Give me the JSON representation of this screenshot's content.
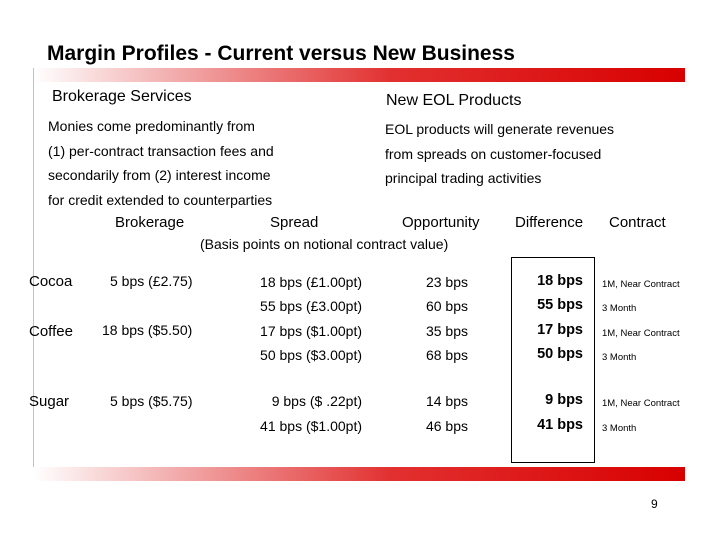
{
  "title": "Margin Profiles - Current versus New Business",
  "left": {
    "heading": "Brokerage Services",
    "lines": [
      "Monies come predominantly from",
      "(1) per-contract transaction fees and",
      "secondarily from (2) interest income",
      "for credit extended to counterparties"
    ]
  },
  "right": {
    "heading": "New EOL Products",
    "lines": [
      "EOL products will generate revenues",
      "from spreads on customer-focused",
      "principal trading activities"
    ]
  },
  "table": {
    "headers": {
      "brokerage": "Brokerage",
      "spread": "Spread",
      "opportunity": "Opportunity",
      "difference": "Difference",
      "contract": "Contract",
      "subtitle": "(Basis points on notional contract value)"
    },
    "commodities": [
      "Cocoa",
      "Coffee",
      "Sugar"
    ],
    "brokerage": [
      "5 bps (£2.75)",
      "18 bps ($5.50)",
      "5 bps ($5.75)"
    ],
    "rows": [
      {
        "spread": "18 bps (£1.00pt)",
        "opportunity": "23 bps",
        "difference": "18 bps",
        "contract": "1M, Near Contract"
      },
      {
        "spread": "55 bps (£3.00pt)",
        "opportunity": "60 bps",
        "difference": "55 bps",
        "contract": "3 Month"
      },
      {
        "spread": "17 bps ($1.00pt)",
        "opportunity": "35 bps",
        "difference": "17 bps",
        "contract": "1M, Near Contract"
      },
      {
        "spread": "50 bps ($3.00pt)",
        "opportunity": "68 bps",
        "difference": "50 bps",
        "contract": "3 Month"
      },
      {
        "spread": "9 bps ($  .22pt)",
        "opportunity": "14 bps",
        "difference": "9 bps",
        "contract": "1M, Near Contract"
      },
      {
        "spread": "41 bps ($1.00pt)",
        "opportunity": "46 bps",
        "difference": "41 bps",
        "contract": "3 Month"
      }
    ]
  },
  "page_number": "9",
  "colors": {
    "accent_red": "#d80000"
  }
}
